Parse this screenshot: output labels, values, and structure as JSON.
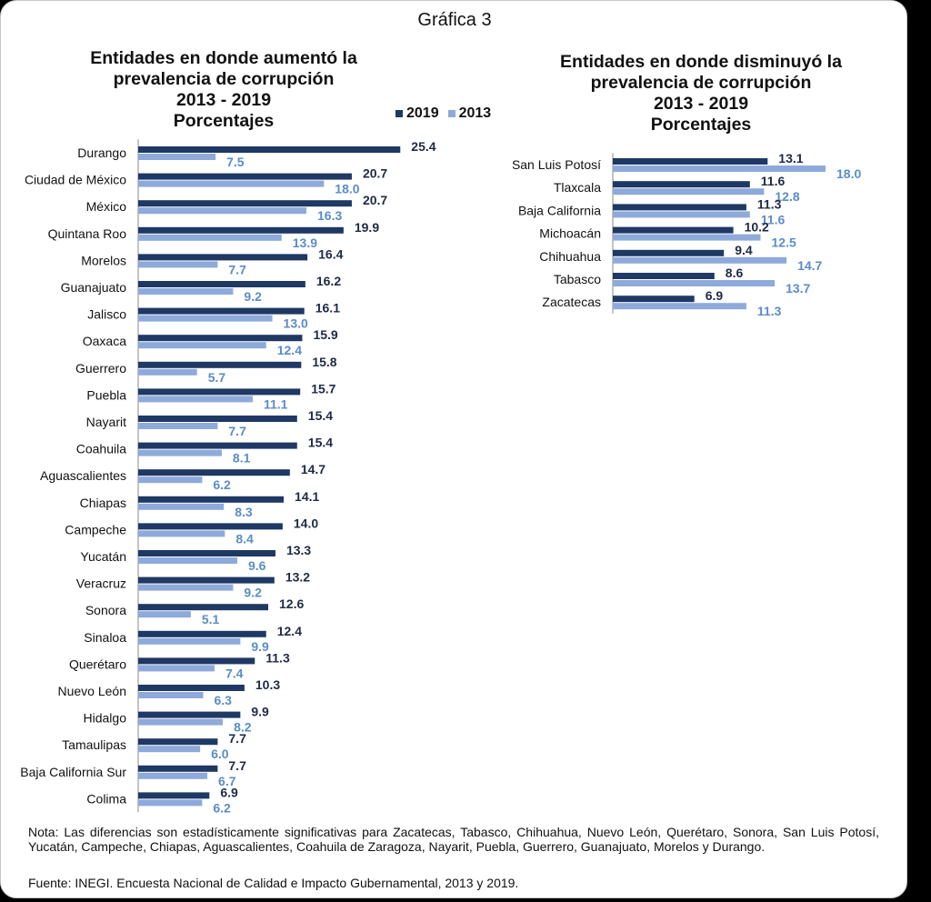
{
  "figure_title": "Gráfica 3",
  "colors": {
    "series_2019": "#1f3864",
    "series_2013": "#8eaadb",
    "label_2019": "#1f2a44",
    "label_2013": "#5b8cc7"
  },
  "legend": {
    "series_2019": "2019",
    "series_2013": "2013"
  },
  "note": "Nota: Las diferencias son estadísticamente significativas para Zacatecas, Tabasco, Chihuahua, Nuevo León, Querétaro, Sonora, San Luis Potosí, Yucatán, Campeche, Chiapas, Aguascalientes, Coahuila de Zaragoza, Nayarit, Puebla, Guerrero, Guanajuato, Morelos y Durango.",
  "source": "Fuente: INEGI. Encuesta Nacional de Calidad e Impacto Gubernamental,  2013 y 2019.",
  "chart_data": [
    {
      "type": "bar",
      "orientation": "horizontal",
      "title_lines": [
        "Entidades en donde aumentó la",
        "prevalencia de corrupción",
        "2013 - 2019",
        "Porcentajes"
      ],
      "categories": [
        "Durango",
        "Ciudad de México",
        "México",
        "Quintana Roo",
        "Morelos",
        "Guanajuato",
        "Jalisco",
        "Oaxaca",
        "Guerrero",
        "Puebla",
        "Nayarit",
        "Coahuila",
        "Aguascalientes",
        "Chiapas",
        "Campeche",
        "Yucatán",
        "Veracruz",
        "Sonora",
        "Sinaloa",
        "Querétaro",
        "Nuevo León",
        "Hidalgo",
        "Tamaulipas",
        "Baja California Sur",
        "Colima"
      ],
      "series": [
        {
          "name": "2019",
          "values": [
            25.4,
            20.7,
            20.7,
            19.9,
            16.4,
            16.2,
            16.1,
            15.9,
            15.8,
            15.7,
            15.4,
            15.4,
            14.7,
            14.1,
            14.0,
            13.3,
            13.2,
            12.6,
            12.4,
            11.3,
            10.3,
            9.9,
            7.7,
            7.7,
            6.9
          ]
        },
        {
          "name": "2013",
          "values": [
            7.5,
            18.0,
            16.3,
            13.9,
            7.7,
            9.2,
            13.0,
            12.4,
            5.7,
            11.1,
            7.7,
            8.1,
            6.2,
            8.3,
            8.4,
            9.6,
            9.2,
            5.1,
            9.9,
            7.4,
            6.3,
            8.2,
            6.0,
            6.7,
            6.2
          ]
        }
      ],
      "legend_position": "top-right",
      "grid": false
    },
    {
      "type": "bar",
      "orientation": "horizontal",
      "title_lines": [
        "Entidades en donde disminuyó la",
        "prevalencia de corrupción",
        "2013 - 2019",
        "Porcentajes"
      ],
      "categories": [
        "San Luis Potosí",
        "Tlaxcala",
        "Baja California",
        "Michoacán",
        "Chihuahua",
        "Tabasco",
        "Zacatecas"
      ],
      "series": [
        {
          "name": "2019",
          "values": [
            13.1,
            11.6,
            11.3,
            10.2,
            9.4,
            8.6,
            6.9
          ]
        },
        {
          "name": "2013",
          "values": [
            18.0,
            12.8,
            11.6,
            12.5,
            14.7,
            13.7,
            11.3
          ]
        }
      ],
      "grid": false
    }
  ]
}
